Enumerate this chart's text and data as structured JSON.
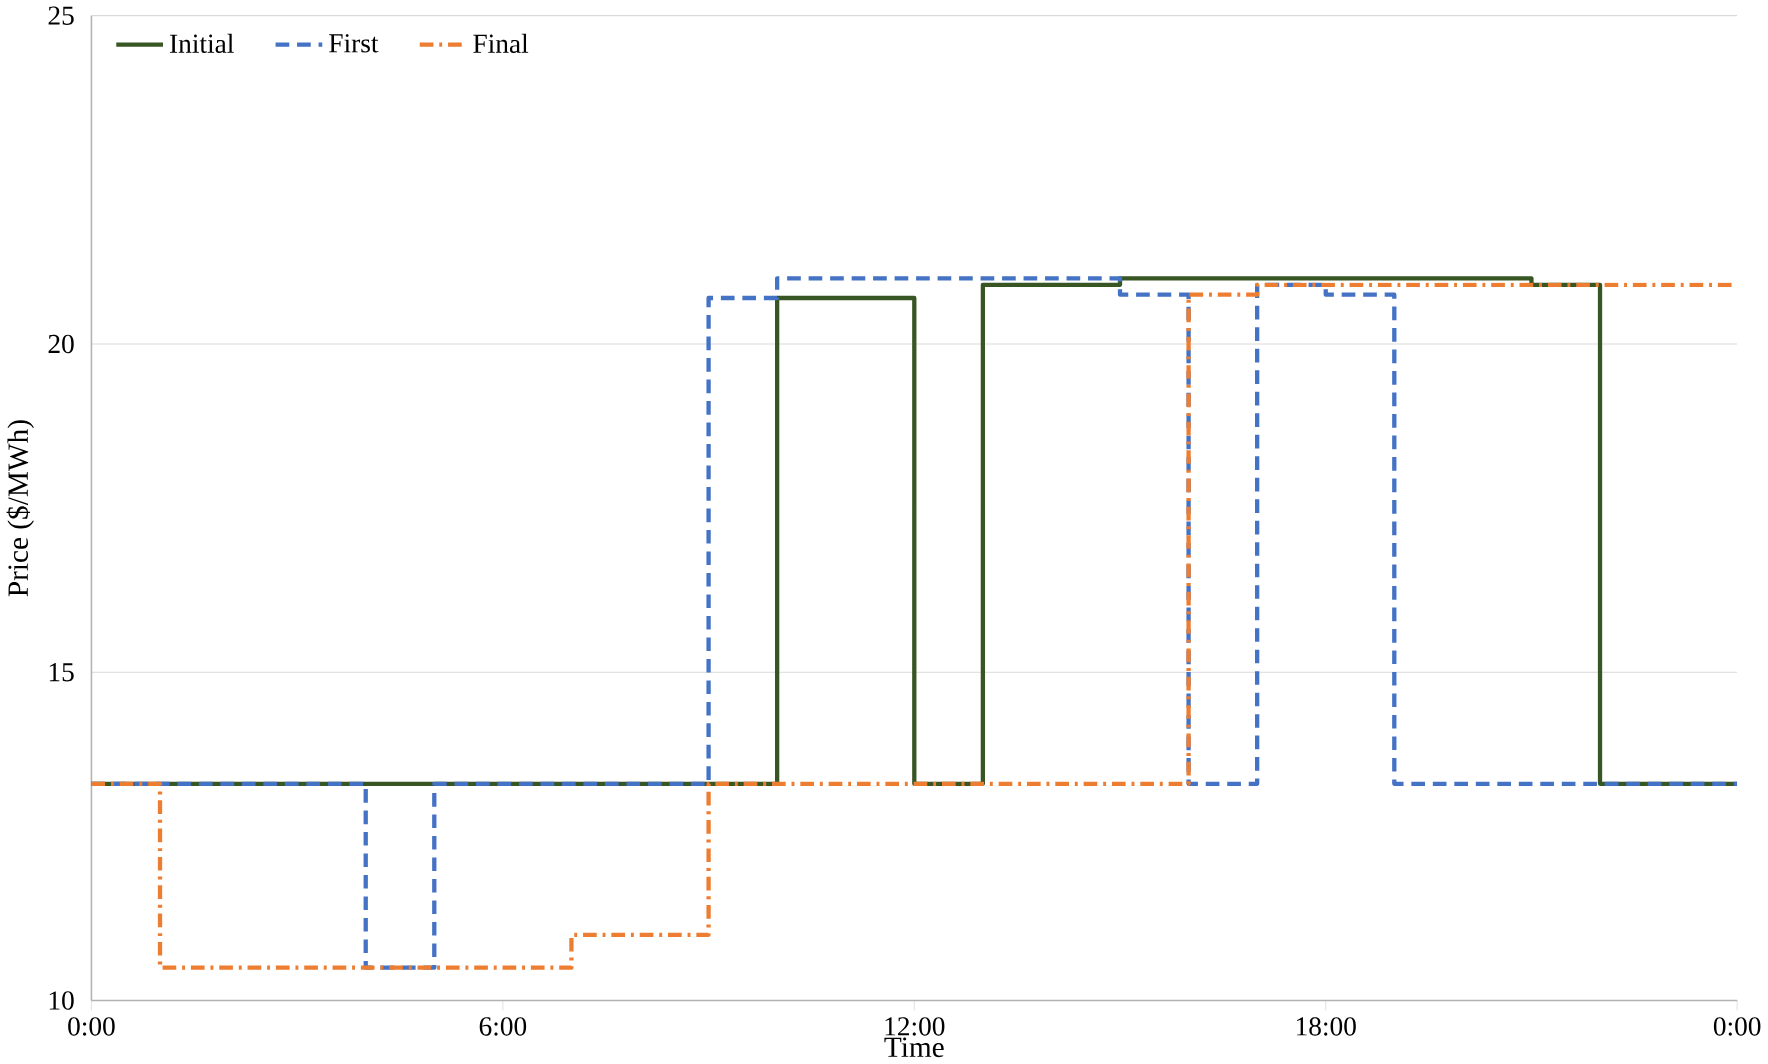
{
  "chart_data": {
    "type": "step",
    "xlabel": "Time",
    "ylabel": "Price ($/MWh)",
    "xlim": [
      0,
      24
    ],
    "xticks": [
      {
        "value": 0,
        "label": "0:00"
      },
      {
        "value": 6,
        "label": "6:00"
      },
      {
        "value": 12,
        "label": "12:00"
      },
      {
        "value": 18,
        "label": "18:00"
      },
      {
        "value": 24,
        "label": "0:00"
      }
    ],
    "ylim": [
      10,
      25
    ],
    "yticks": [
      10,
      15,
      20,
      25
    ],
    "grid": "y",
    "legend": "top left",
    "series": [
      {
        "name": "Initial",
        "color": "#375623",
        "line_style": "solid",
        "x": [
          0,
          10,
          12,
          13,
          15,
          21,
          22,
          24
        ],
        "values": [
          13.3,
          20.7,
          13.3,
          20.9,
          21.0,
          20.9,
          13.3,
          13.3
        ]
      },
      {
        "name": "First",
        "color": "#4472c4",
        "line_style": "dashed",
        "x": [
          0,
          4,
          5,
          9,
          10,
          15,
          16,
          17,
          18,
          19,
          24
        ],
        "values": [
          13.3,
          10.5,
          13.3,
          20.7,
          21.0,
          20.75,
          13.3,
          20.9,
          20.75,
          13.3,
          13.3
        ]
      },
      {
        "name": "Final",
        "color": "#ed7d31",
        "line_style": "dashdot",
        "x": [
          0,
          1,
          7,
          9,
          16,
          17,
          24
        ],
        "values": [
          13.3,
          10.5,
          11.0,
          13.3,
          20.75,
          20.9,
          20.9
        ]
      }
    ]
  }
}
